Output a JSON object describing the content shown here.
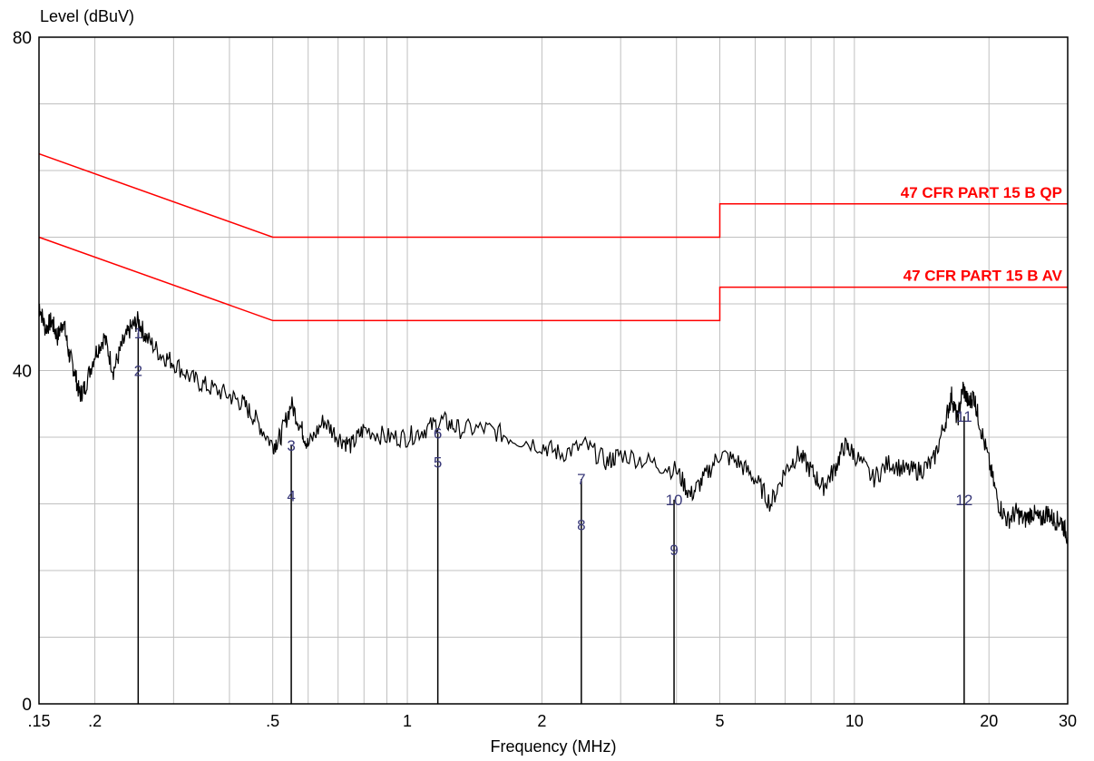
{
  "chart_data": {
    "type": "line",
    "ylabel": "Level (dBuV)",
    "xlabel": "Frequency (MHz)",
    "xscale": "log",
    "xlim": [
      0.15,
      30
    ],
    "ylim": [
      0,
      80
    ],
    "grid": true,
    "x_tick_labels": [
      {
        "value": 0.15,
        "label": ".15"
      },
      {
        "value": 0.2,
        "label": ".2"
      },
      {
        "value": 0.5,
        "label": ".5"
      },
      {
        "value": 1,
        "label": "1"
      },
      {
        "value": 2,
        "label": "2"
      },
      {
        "value": 5,
        "label": "5"
      },
      {
        "value": 10,
        "label": "10"
      },
      {
        "value": 20,
        "label": "20"
      },
      {
        "value": 30,
        "label": "30"
      }
    ],
    "y_tick_labels": [
      {
        "value": 0,
        "label": "0"
      },
      {
        "value": 40,
        "label": "40"
      },
      {
        "value": 80,
        "label": "80"
      }
    ],
    "limit_lines": [
      {
        "name": "47 CFR PART 15 B QP",
        "color": "#ff0000",
        "points": [
          [
            0.15,
            66
          ],
          [
            0.5,
            56
          ],
          [
            5,
            56
          ],
          [
            5,
            60
          ],
          [
            30,
            60
          ]
        ]
      },
      {
        "name": "47 CFR PART 15 B AV",
        "color": "#ff0000",
        "points": [
          [
            0.15,
            56
          ],
          [
            0.5,
            46
          ],
          [
            5,
            46
          ],
          [
            5,
            50
          ],
          [
            30,
            50
          ]
        ]
      }
    ],
    "trace": {
      "color": "#000000",
      "points": [
        [
          0.15,
          48
        ],
        [
          0.155,
          45
        ],
        [
          0.16,
          46
        ],
        [
          0.165,
          44
        ],
        [
          0.17,
          46
        ],
        [
          0.175,
          42
        ],
        [
          0.18,
          40
        ],
        [
          0.185,
          37
        ],
        [
          0.19,
          38
        ],
        [
          0.2,
          42
        ],
        [
          0.21,
          44
        ],
        [
          0.22,
          40
        ],
        [
          0.23,
          43
        ],
        [
          0.24,
          45
        ],
        [
          0.25,
          46
        ],
        [
          0.26,
          44
        ],
        [
          0.28,
          42
        ],
        [
          0.3,
          41
        ],
        [
          0.33,
          39
        ],
        [
          0.36,
          38
        ],
        [
          0.4,
          37
        ],
        [
          0.43,
          36
        ],
        [
          0.46,
          34
        ],
        [
          0.5,
          31
        ],
        [
          0.52,
          32
        ],
        [
          0.55,
          36
        ],
        [
          0.58,
          33
        ],
        [
          0.6,
          31
        ],
        [
          0.65,
          34
        ],
        [
          0.7,
          32
        ],
        [
          0.75,
          31
        ],
        [
          0.8,
          33
        ],
        [
          0.9,
          32
        ],
        [
          1.0,
          32
        ],
        [
          1.1,
          33
        ],
        [
          1.2,
          34
        ],
        [
          1.3,
          33
        ],
        [
          1.5,
          33
        ],
        [
          1.7,
          32
        ],
        [
          2.0,
          31
        ],
        [
          2.2,
          30
        ],
        [
          2.5,
          31
        ],
        [
          2.8,
          29
        ],
        [
          3.0,
          30
        ],
        [
          3.5,
          29
        ],
        [
          4.0,
          28
        ],
        [
          4.3,
          25
        ],
        [
          4.6,
          27
        ],
        [
          5.0,
          30
        ],
        [
          5.5,
          29
        ],
        [
          6.0,
          27
        ],
        [
          6.5,
          24
        ],
        [
          7.0,
          28
        ],
        [
          7.5,
          30
        ],
        [
          8.0,
          28
        ],
        [
          8.5,
          26
        ],
        [
          9.0,
          28
        ],
        [
          9.5,
          31
        ],
        [
          10.0,
          30
        ],
        [
          11.0,
          27
        ],
        [
          12.0,
          29
        ],
        [
          13.0,
          28
        ],
        [
          14.0,
          28
        ],
        [
          15.0,
          29
        ],
        [
          16.0,
          34
        ],
        [
          16.5,
          37
        ],
        [
          17.0,
          34
        ],
        [
          17.5,
          38
        ],
        [
          18.0,
          36
        ],
        [
          18.5,
          37
        ],
        [
          19.0,
          34
        ],
        [
          20.0,
          29
        ],
        [
          21.0,
          24
        ],
        [
          22.0,
          22
        ],
        [
          23.0,
          23
        ],
        [
          24.0,
          22
        ],
        [
          25.0,
          23
        ],
        [
          26.0,
          22
        ],
        [
          27.0,
          23
        ],
        [
          28.0,
          22
        ],
        [
          29.0,
          22
        ],
        [
          30.0,
          20
        ]
      ]
    },
    "markers": [
      {
        "id": "1",
        "freq": 0.25,
        "level": 44.5
      },
      {
        "id": "2",
        "freq": 0.25,
        "level": 40
      },
      {
        "id": "3",
        "freq": 0.55,
        "level": 31
      },
      {
        "id": "4",
        "freq": 0.55,
        "level": 25
      },
      {
        "id": "5",
        "freq": 1.17,
        "level": 29
      },
      {
        "id": "6",
        "freq": 1.17,
        "level": 32.5
      },
      {
        "id": "7",
        "freq": 2.45,
        "level": 27
      },
      {
        "id": "8",
        "freq": 2.45,
        "level": 21.5
      },
      {
        "id": "9",
        "freq": 3.95,
        "level": 18.5
      },
      {
        "id": "10",
        "freq": 3.95,
        "level": 24.5
      },
      {
        "id": "11",
        "freq": 17.6,
        "level": 34.5
      },
      {
        "id": "12",
        "freq": 17.6,
        "level": 24.5
      }
    ]
  }
}
